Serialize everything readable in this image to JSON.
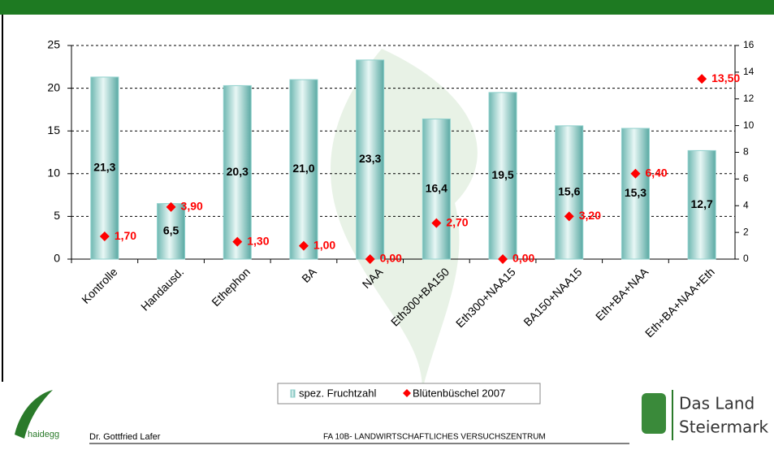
{
  "chart_data": {
    "type": "bar",
    "categories": [
      "Kontrolle",
      "Handausd.",
      "Ethephon",
      "BA",
      "NAA",
      "Eth300+BA150",
      "Eth300+NAA15",
      "BA150+NAA15",
      "Eth+BA+NAA",
      "Eth+BA+NAA+Eth"
    ],
    "series": [
      {
        "name": "spez. Fruchtzahl",
        "color": "#8fd0cc",
        "type": "bar",
        "values": [
          21.3,
          6.5,
          20.3,
          21.0,
          23.3,
          16.4,
          19.5,
          15.6,
          15.3,
          12.7
        ],
        "value_labels": [
          "21,3",
          "6,5",
          "20,3",
          "21,0",
          "23,3",
          "16,4",
          "19,5",
          "15,6",
          "15,3",
          "12,7"
        ]
      },
      {
        "name": "Blütenbüschel 2007",
        "color": "#ff0000",
        "type": "scatter",
        "axis": "y2",
        "values": [
          1.7,
          3.9,
          1.3,
          1.0,
          0.0,
          2.7,
          0.0,
          3.2,
          6.4,
          13.5
        ],
        "value_labels": [
          "1,70",
          "3,90",
          "1,30",
          "1,00",
          "0,00",
          "2,70",
          "0,00",
          "3,20",
          "6,40",
          "13,50"
        ]
      }
    ],
    "ylim": [
      0,
      25
    ],
    "yticks": [
      0,
      5,
      10,
      15,
      20,
      25
    ],
    "y2lim": [
      0,
      16
    ],
    "y2ticks": [
      0,
      2,
      4,
      6,
      8,
      10,
      12,
      14,
      16
    ],
    "grid": true,
    "legend": "bottom"
  },
  "footer": {
    "author": "Dr. Gottfried Lafer",
    "institute": "FA 10B- LANDWIRTSCHAFTLICHES VERSUCHSZENTRUM"
  },
  "logos": {
    "left": "haidegg",
    "right_line1": "Das Land",
    "right_line2": "Steiermark"
  }
}
